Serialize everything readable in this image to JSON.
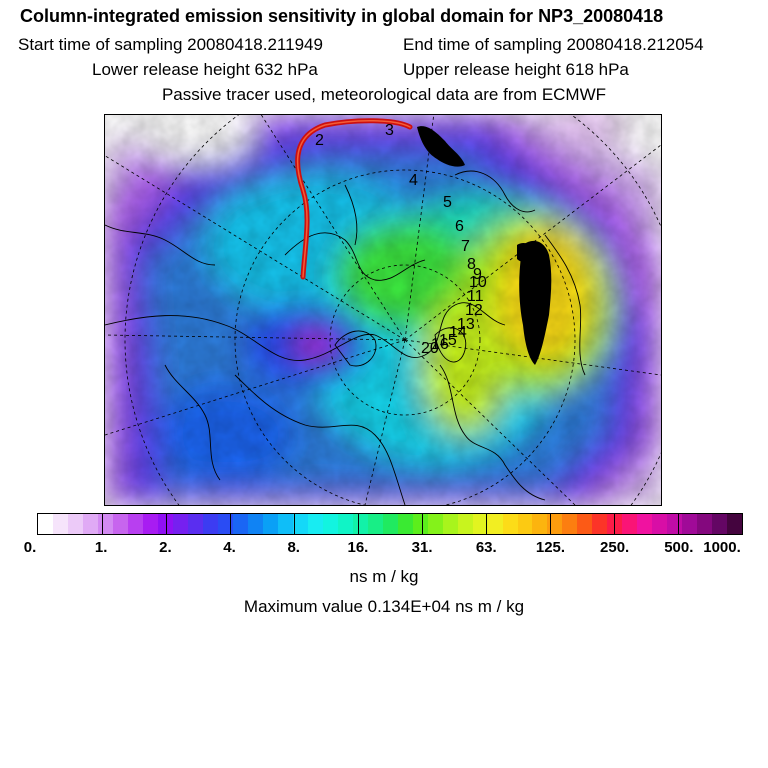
{
  "header": {
    "title": "Column-integrated emission sensitivity in global domain for NP3_20080418",
    "start_time": "Start time of sampling 20080418.211949",
    "end_time": "End time of sampling 20080418.212054",
    "lower_release": "Lower release height  632 hPa",
    "upper_release": "Upper release height  618 hPa",
    "tracer_note": "Passive tracer used, meteorological data are from ECMWF"
  },
  "map": {
    "trajectory_labels": [
      "2",
      "3",
      "4",
      "5",
      "6",
      "7",
      "8",
      "9",
      "10",
      "11",
      "12",
      "13",
      "14",
      "15",
      "16",
      "20"
    ],
    "colors": {
      "trajectory": "#cc1010",
      "coast": "#000000",
      "grid": "#000000",
      "ocean_base": "#2f7fe0"
    }
  },
  "colorbar": {
    "ticks": [
      "0.",
      "1.",
      "2.",
      "4.",
      "8.",
      "16.",
      "31.",
      "63.",
      "125.",
      "250.",
      "500.",
      "1000."
    ],
    "colors": [
      "#ffffff",
      "#f6e4fb",
      "#eccaf8",
      "#e0aaf5",
      "#d38af2",
      "#c765ee",
      "#b83ff0",
      "#a81cf2",
      "#9010f4",
      "#7620f0",
      "#5a2ef0",
      "#3c3cf2",
      "#2a4cf4",
      "#1a66f4",
      "#1083f4",
      "#0aa0f6",
      "#0fbef8",
      "#14d8f8",
      "#18ecf2",
      "#12f4e0",
      "#10f4c6",
      "#12f2a8",
      "#18ee86",
      "#20ea60",
      "#3aea32",
      "#5cee1c",
      "#84f21a",
      "#a8f41c",
      "#c8f41e",
      "#e2f420",
      "#f2ee22",
      "#fcdc18",
      "#fcca12",
      "#fcb40e",
      "#fc9c0e",
      "#fc7e10",
      "#fc5a16",
      "#fc3428",
      "#fc1c48",
      "#fa1476",
      "#f012a0",
      "#d80ea6",
      "#c00ca6",
      "#a00a98",
      "#84087e",
      "#640664",
      "#44043e"
    ],
    "units": "ns m / kg",
    "max_value": "Maximum value  0.134E+04 ns m / kg"
  }
}
